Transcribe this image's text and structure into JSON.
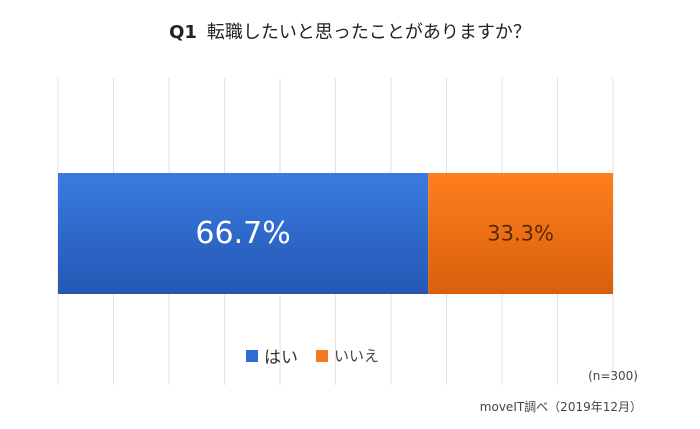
{
  "chart_data": {
    "type": "bar",
    "orientation": "horizontal-stacked-100",
    "title_prefix": "Q1",
    "title": "転職したいと思ったことがありますか？",
    "series": [
      {
        "name": "はい",
        "value": 66.7,
        "label": "66.7%",
        "color": "#2f6dd6"
      },
      {
        "name": "いいえ",
        "value": 33.3,
        "label": "33.3%",
        "color": "#f4791f"
      }
    ],
    "xlim": [
      0,
      100
    ],
    "grid": true,
    "legend_position": "bottom-center",
    "sample_note": "(n=300)",
    "source_note": "moveIT調べ（2019年12月）"
  }
}
